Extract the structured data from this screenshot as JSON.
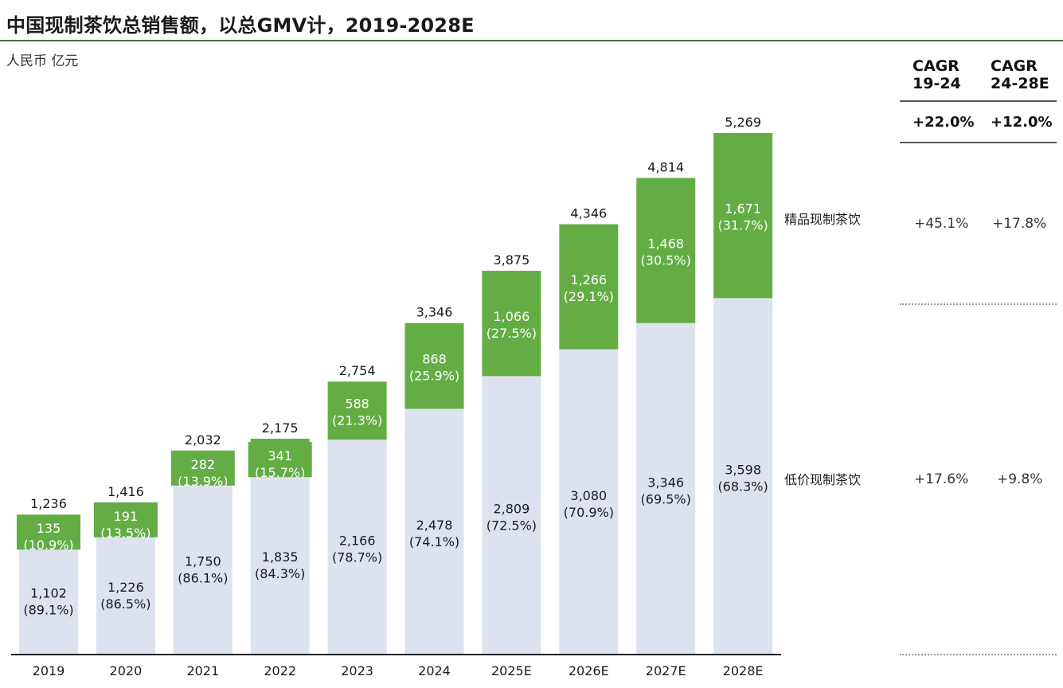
{
  "title": "中国现制茶饮总销售额，以总GMV计，2019-2028E",
  "unit": "人民币 亿元",
  "colors": {
    "premium": "#64ad45",
    "lowprice": "#dde3ee",
    "axis": "#222222",
    "rule": "#3f6f3a"
  },
  "segments": {
    "premium_label": "精品现制茶饮",
    "lowprice_label": "低价现制茶饮"
  },
  "cagr": {
    "headers": [
      {
        "line1": "CAGR",
        "line2": "19-24"
      },
      {
        "line1": "CAGR",
        "line2": "24-28E"
      }
    ],
    "total": [
      "+22.0%",
      "+12.0%"
    ],
    "premium": [
      "+45.1%",
      "+17.8%"
    ],
    "lowprice": [
      "+17.6%",
      "+9.8%"
    ]
  },
  "chart_data": {
    "type": "bar",
    "stacked": true,
    "categories": [
      "2019",
      "2020",
      "2021",
      "2022",
      "2023",
      "2024",
      "2025E",
      "2026E",
      "2027E",
      "2028E"
    ],
    "series": [
      {
        "name": "低价现制茶饮",
        "values": [
          1102,
          1226,
          1750,
          1835,
          2166,
          2478,
          2809,
          3080,
          3346,
          3598
        ],
        "labels": [
          "1,102",
          "1,226",
          "1,750",
          "1,835",
          "2,166",
          "2,478",
          "2,809",
          "3,080",
          "3,346",
          "3,598"
        ],
        "shares": [
          "(89.1%)",
          "(86.5%)",
          "(86.1%)",
          "(84.3%)",
          "(78.7%)",
          "(74.1%)",
          "(72.5%)",
          "(70.9%)",
          "(69.5%)",
          "(68.3%)"
        ]
      },
      {
        "name": "精品现制茶饮",
        "values": [
          135,
          191,
          282,
          341,
          588,
          868,
          1066,
          1266,
          1468,
          1671
        ],
        "labels": [
          "135",
          "191",
          "282",
          "341",
          "588",
          "868",
          "1,066",
          "1,266",
          "1,468",
          "1,671"
        ],
        "shares": [
          "(10.9%)",
          "(13.5%)",
          "(13.9%)",
          "(15.7%)",
          "(21.3%)",
          "(25.9%)",
          "(27.5%)",
          "(29.1%)",
          "(30.5%)",
          "(31.7%)"
        ]
      }
    ],
    "totals": [
      "1,236",
      "1,416",
      "2,032",
      "2,175",
      "2,754",
      "3,346",
      "3,875",
      "4,346",
      "4,814",
      "5,269"
    ],
    "ylim": [
      0,
      5269
    ]
  }
}
